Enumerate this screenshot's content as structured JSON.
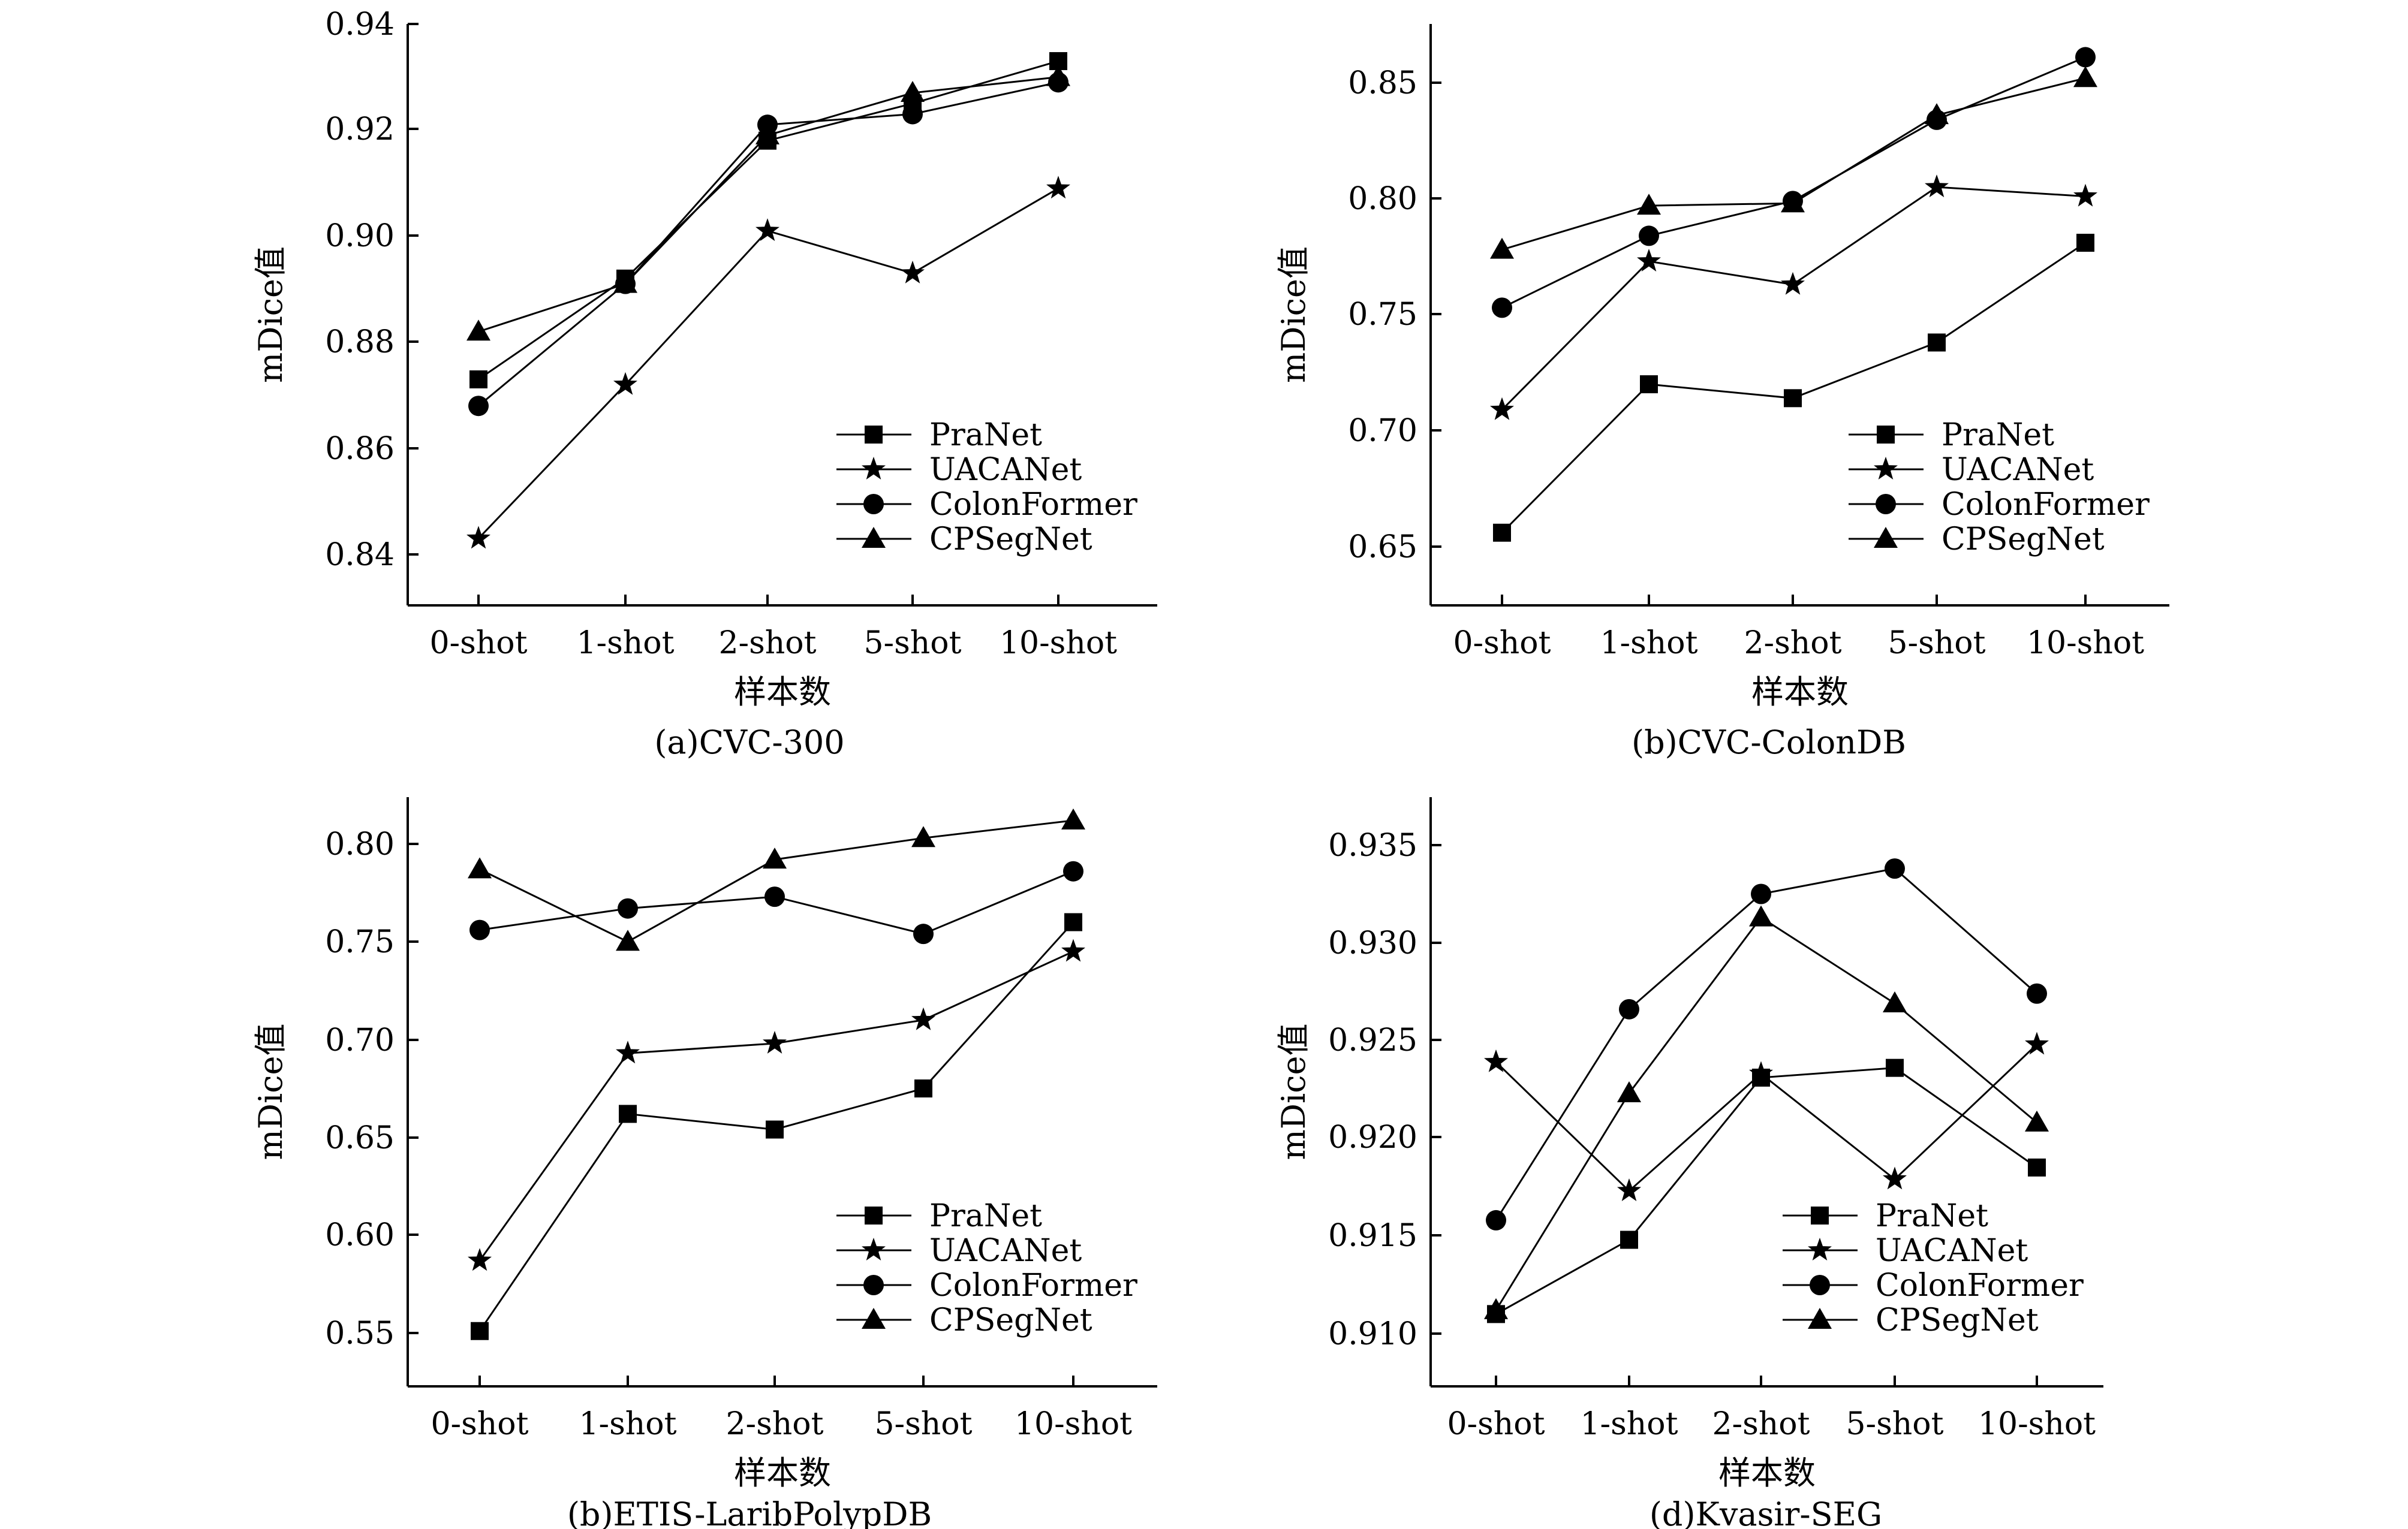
{
  "chart_data": [
    {
      "type": "line",
      "caption": "(a)CVC-300",
      "xlabel": "样本数",
      "ylabel": "mDice值",
      "categories": [
        "0-shot",
        "1-shot",
        "2-shot",
        "5-shot",
        "10-shot"
      ],
      "ylim": [
        0.83,
        0.94
      ],
      "yticks": [
        "0.84",
        "0.86",
        "0.88",
        "0.90",
        "0.92",
        "0.94"
      ],
      "legend_position": "bottom-right",
      "series": [
        {
          "name": "PraNet",
          "marker": "square",
          "values": [
            0.873,
            0.892,
            0.918,
            0.925,
            0.933
          ]
        },
        {
          "name": "UACANet",
          "marker": "star",
          "values": [
            0.843,
            0.872,
            0.901,
            0.893,
            0.909
          ]
        },
        {
          "name": "ColonFormer",
          "marker": "circle",
          "values": [
            0.868,
            0.891,
            0.921,
            0.923,
            0.929
          ]
        },
        {
          "name": "CPSegNet",
          "marker": "triangle",
          "values": [
            0.882,
            0.891,
            0.919,
            0.927,
            0.93
          ]
        }
      ]
    },
    {
      "type": "line",
      "caption": "(b)CVC-ColonDB",
      "xlabel": "样本数",
      "ylabel": "mDice值",
      "categories": [
        "0-shot",
        "1-shot",
        "2-shot",
        "5-shot",
        "10-shot"
      ],
      "ylim": [
        0.625,
        0.875
      ],
      "yticks": [
        "0.65",
        "0.70",
        "0.75",
        "0.80",
        "0.85"
      ],
      "legend_position": "bottom-right",
      "series": [
        {
          "name": "PraNet",
          "marker": "square",
          "values": [
            0.656,
            0.72,
            0.714,
            0.738,
            0.781
          ]
        },
        {
          "name": "UACANet",
          "marker": "star",
          "values": [
            0.709,
            0.773,
            0.763,
            0.805,
            0.801
          ]
        },
        {
          "name": "ColonFormer",
          "marker": "circle",
          "values": [
            0.753,
            0.784,
            0.799,
            0.834,
            0.861
          ]
        },
        {
          "name": "CPSegNet",
          "marker": "triangle",
          "values": [
            0.778,
            0.797,
            0.798,
            0.836,
            0.852
          ]
        }
      ]
    },
    {
      "type": "line",
      "caption": "(b)ETIS-LaribPolypDB",
      "xlabel": "样本数",
      "ylabel": "mDice值",
      "categories": [
        "0-shot",
        "1-shot",
        "2-shot",
        "5-shot",
        "10-shot"
      ],
      "ylim": [
        0.525,
        0.825
      ],
      "yticks": [
        "0.55",
        "0.60",
        "0.65",
        "0.70",
        "0.75",
        "0.80"
      ],
      "legend_position": "bottom-right",
      "series": [
        {
          "name": "PraNet",
          "marker": "square",
          "values": [
            0.551,
            0.662,
            0.654,
            0.675,
            0.76
          ]
        },
        {
          "name": "UACANet",
          "marker": "star",
          "values": [
            0.587,
            0.693,
            0.698,
            0.71,
            0.745
          ]
        },
        {
          "name": "ColonFormer",
          "marker": "circle",
          "values": [
            0.756,
            0.767,
            0.773,
            0.754,
            0.786
          ]
        },
        {
          "name": "CPSegNet",
          "marker": "triangle",
          "values": [
            0.787,
            0.75,
            0.792,
            0.803,
            0.812
          ]
        }
      ]
    },
    {
      "type": "line",
      "caption": "(d)Kvasir-SEG",
      "xlabel": "样本数",
      "ylabel": "mDice值",
      "categories": [
        "0-shot",
        "1-shot",
        "2-shot",
        "5-shot",
        "10-shot"
      ],
      "ylim": [
        0.908,
        0.937
      ],
      "yticks": [
        "0.910",
        "0.915",
        "0.920",
        "0.925",
        "0.930",
        "0.935"
      ],
      "legend_position": "bottom-right",
      "series": [
        {
          "name": "PraNet",
          "marker": "square",
          "values": [
            0.911,
            0.9148,
            0.9231,
            0.9236,
            0.9185
          ]
        },
        {
          "name": "UACANet",
          "marker": "star",
          "values": [
            0.9239,
            0.9173,
            0.9233,
            0.9179,
            0.9248
          ]
        },
        {
          "name": "ColonFormer",
          "marker": "circle",
          "values": [
            0.9158,
            0.9266,
            0.9325,
            0.9338,
            0.9274
          ]
        },
        {
          "name": "CPSegNet",
          "marker": "triangle",
          "values": [
            0.9112,
            0.9223,
            0.9313,
            0.9269,
            0.9208
          ]
        }
      ]
    }
  ]
}
